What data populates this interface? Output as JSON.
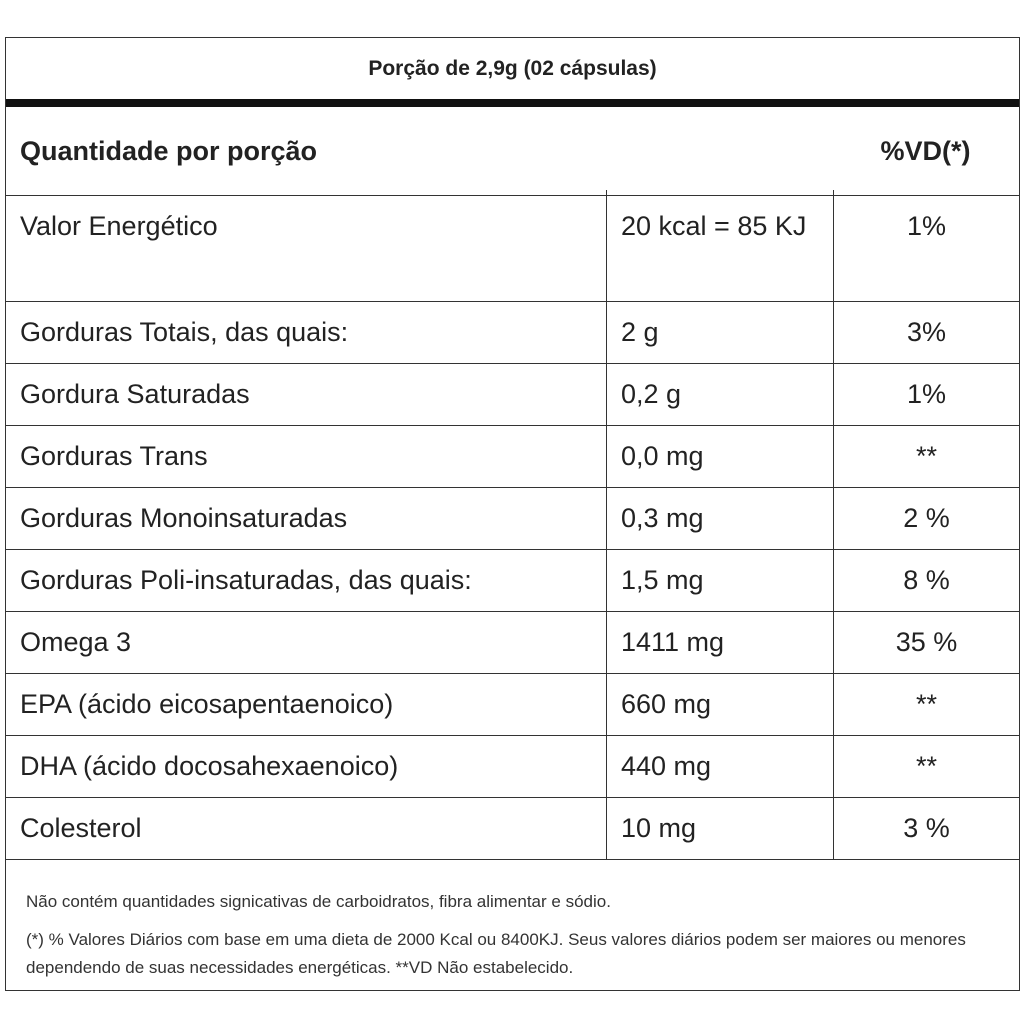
{
  "header": {
    "portion": "Porção de 2,9g (02 cápsulas)"
  },
  "table": {
    "head": [
      "Quantidade por porção",
      "%VD(*)"
    ],
    "rows": [
      [
        "Valor Energético",
        "20 kcal = 85 KJ",
        "1%"
      ],
      [
        "Gorduras Totais, das quais:",
        "2 g",
        "3%"
      ],
      [
        "Gordura Saturadas",
        "0,2 g",
        "1%"
      ],
      [
        "Gorduras Trans",
        "0,0 mg",
        "**"
      ],
      [
        "Gorduras Monoinsaturadas",
        "0,3 mg",
        "2 %"
      ],
      [
        "Gorduras Poli-insaturadas, das quais:",
        "1,5 mg",
        "8 %"
      ],
      [
        "Omega 3",
        "1411 mg",
        "35 %"
      ],
      [
        "EPA (ácido eicosapentaenoico)",
        "660 mg",
        "**"
      ],
      [
        "DHA (ácido docosahexaenoico)",
        "440 mg",
        "**"
      ],
      [
        "Colesterol",
        "10 mg",
        "3 %"
      ]
    ]
  },
  "footnotes": [
    "Não contém quantidades signicativas de carboidratos, fibra alimentar e sódio.",
    "(*) % Valores Diários com base em uma dieta de 2000 Kcal ou 8400KJ. Seus valores diários podem ser maiores ou menores dependendo de suas necessidades energéticas. **VD Não estabelecido."
  ]
}
